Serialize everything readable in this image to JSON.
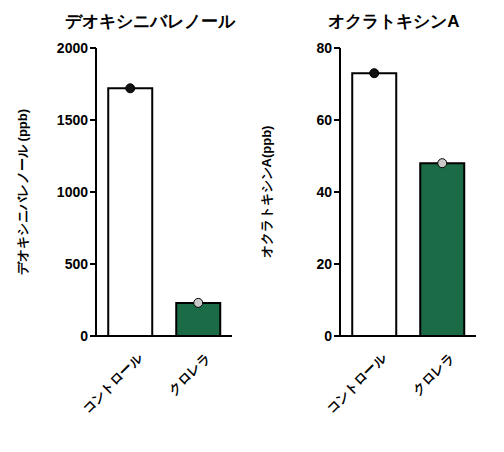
{
  "chart_data": [
    {
      "type": "bar",
      "title": "デオキシニバレノール",
      "y_label": "デオキシニバレノール (ppb)",
      "categories": [
        "コントロール",
        "クロレラ"
      ],
      "values": [
        1720,
        230
      ],
      "colors": [
        "#ffffff",
        "#1b6b47"
      ],
      "ylim": [
        0,
        2000
      ],
      "yticks": [
        0,
        500,
        1000,
        1500,
        2000
      ],
      "marker": "circle"
    },
    {
      "type": "bar",
      "title": "オクラトキシンA",
      "y_label": "オクラトキシンA(ppb)",
      "categories": [
        "コントロール",
        "クロレラ"
      ],
      "values": [
        73,
        48
      ],
      "colors": [
        "#ffffff",
        "#1b6b47"
      ],
      "ylim": [
        0,
        80
      ],
      "yticks": [
        0,
        20,
        40,
        60,
        80
      ],
      "marker": "circle"
    }
  ]
}
